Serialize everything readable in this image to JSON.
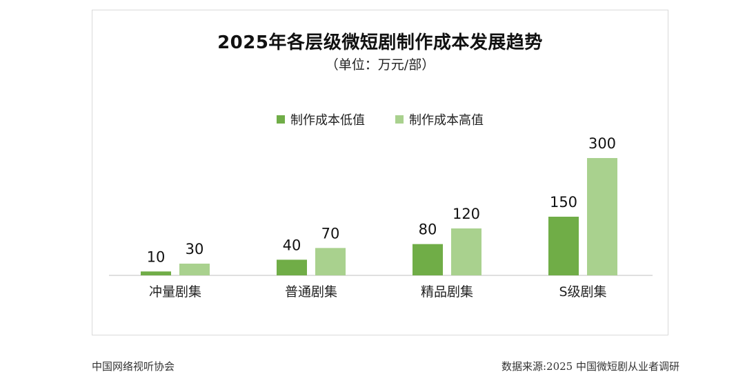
{
  "chart_data": {
    "type": "bar",
    "title": "2025年各层级微短剧制作成本发展趋势",
    "subtitle": "（单位：万元/部）",
    "categories": [
      "冲量剧集",
      "普通剧集",
      "精品剧集",
      "S级剧集"
    ],
    "series": [
      {
        "name": "制作成本低值",
        "values": [
          10,
          40,
          80,
          150
        ],
        "color": "#70ad47"
      },
      {
        "name": "制作成本高值",
        "values": [
          30,
          70,
          120,
          300
        ],
        "color": "#a9d18e"
      }
    ],
    "ylim": [
      0,
      300
    ],
    "xlabel": "",
    "ylabel": "",
    "grid": false,
    "legend_position": "top-center"
  },
  "footer": {
    "source_org": "中国网络视听协会",
    "data_source": "数据来源:2025 中国微短剧从业者调研"
  }
}
